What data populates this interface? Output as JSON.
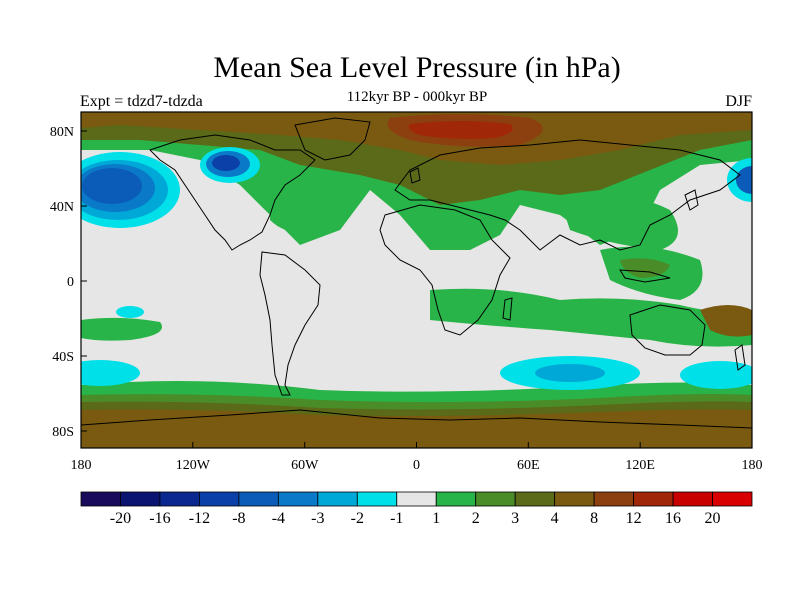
{
  "figure": {
    "title": "Mean Sea Level Pressure (in hPa)",
    "subtitle": "112kyr BP - 000kyr BP",
    "left_string": "Expt = tdzd7-tdzda",
    "right_string": "DJF"
  },
  "map": {
    "lon_ticks": [
      "180",
      "120W",
      "60W",
      "0",
      "60E",
      "120E",
      "180"
    ],
    "lat_ticks": [
      "80N",
      "40N",
      "0",
      "40S",
      "80S"
    ],
    "features": [
      {
        "name": "north-atlantic-low",
        "value": -8
      },
      {
        "name": "north-pacific-low",
        "value": -8
      },
      {
        "name": "southern-ocean-low-indian",
        "value": -2
      },
      {
        "name": "polar-high-north",
        "value": 12
      },
      {
        "name": "antarctic-high",
        "value": 8
      }
    ]
  },
  "colorbar": {
    "labels": [
      "-20",
      "-16",
      "-12",
      "-8",
      "-4",
      "-3",
      "-2",
      "-1",
      "1",
      "2",
      "3",
      "4",
      "8",
      "12",
      "16",
      "20"
    ],
    "colors": [
      "#1a0a5c",
      "#0b1470",
      "#0a2890",
      "#0a40a8",
      "#0a5cb8",
      "#0a7ac8",
      "#00a8d8",
      "#00e0e8",
      "#e6e6e6",
      "#28b448",
      "#4a8c28",
      "#5a6a18",
      "#7a5a10",
      "#8c4010",
      "#a02808",
      "#c80000",
      "#d80000"
    ]
  }
}
